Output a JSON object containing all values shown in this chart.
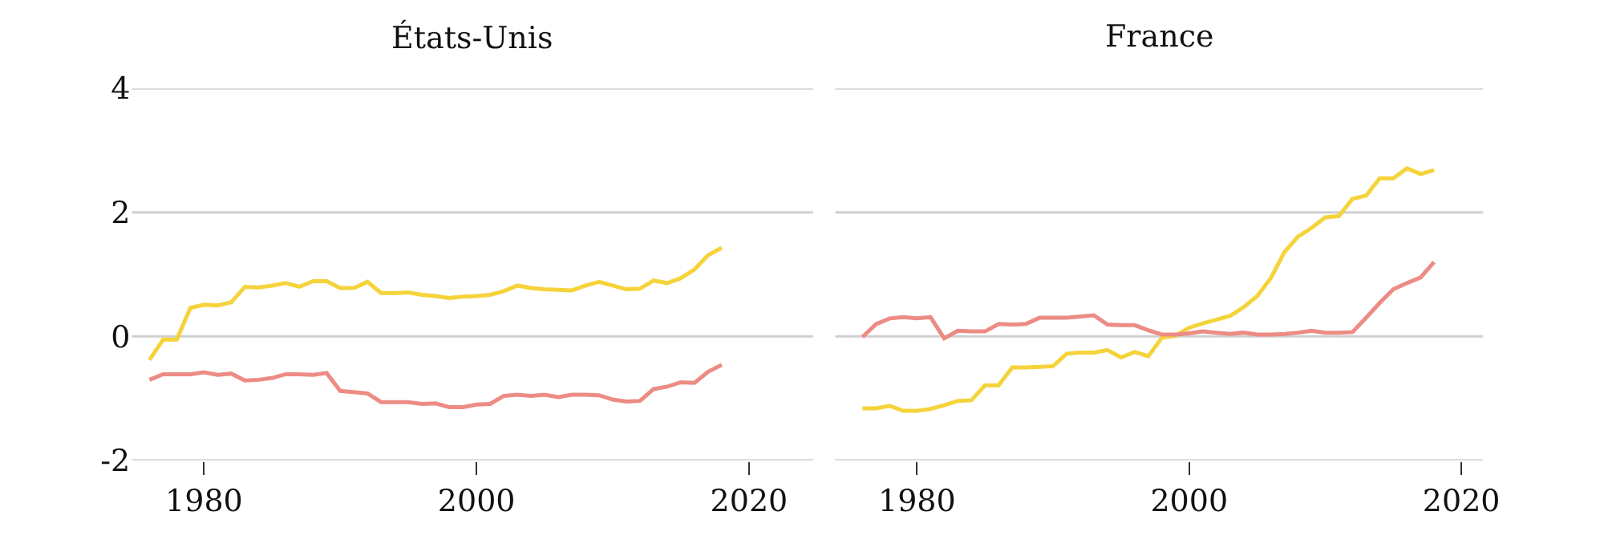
{
  "chart_data": [
    {
      "type": "line",
      "title": "États-Unis",
      "x": [
        1976,
        1977,
        1978,
        1979,
        1980,
        1981,
        1982,
        1983,
        1984,
        1985,
        1986,
        1987,
        1988,
        1989,
        1990,
        1991,
        1992,
        1993,
        1994,
        1995,
        1996,
        1997,
        1998,
        1999,
        2000,
        2001,
        2002,
        2003,
        2004,
        2005,
        2006,
        2007,
        2008,
        2009,
        2010,
        2011,
        2012,
        2013,
        2014,
        2015,
        2016,
        2017,
        2018
      ],
      "series": [
        {
          "color": "#f5d33a",
          "values": [
            -0.38,
            -0.05,
            -0.05,
            0.46,
            0.51,
            0.5,
            0.55,
            0.8,
            0.79,
            0.82,
            0.86,
            0.8,
            0.89,
            0.89,
            0.78,
            0.78,
            0.88,
            0.7,
            0.7,
            0.71,
            0.67,
            0.65,
            0.62,
            0.64,
            0.65,
            0.67,
            0.73,
            0.82,
            0.78,
            0.76,
            0.75,
            0.74,
            0.82,
            0.88,
            0.82,
            0.76,
            0.77,
            0.9,
            0.86,
            0.94,
            1.08,
            1.31,
            1.43
          ]
        },
        {
          "color": "#ec8c84",
          "values": [
            -0.7,
            -0.61,
            -0.61,
            -0.61,
            -0.58,
            -0.62,
            -0.6,
            -0.71,
            -0.7,
            -0.67,
            -0.61,
            -0.61,
            -0.62,
            -0.59,
            -0.88,
            -0.9,
            -0.92,
            -1.06,
            -1.06,
            -1.06,
            -1.09,
            -1.08,
            -1.14,
            -1.14,
            -1.1,
            -1.09,
            -0.96,
            -0.94,
            -0.96,
            -0.94,
            -0.98,
            -0.94,
            -0.94,
            -0.95,
            -1.02,
            -1.05,
            -1.04,
            -0.85,
            -0.81,
            -0.74,
            -0.75,
            -0.57,
            -0.46
          ]
        }
      ],
      "xlim": [
        1974.7,
        2024.7
      ],
      "xticks": [
        1980,
        2000,
        2020
      ],
      "ylim": [
        -2,
        4
      ],
      "yticks": [
        -2,
        0,
        2,
        4
      ],
      "grid": "y",
      "line_style": "solid",
      "marker": "none"
    },
    {
      "type": "line",
      "title": "France",
      "x": [
        1976,
        1977,
        1978,
        1979,
        1980,
        1981,
        1982,
        1983,
        1984,
        1985,
        1986,
        1987,
        1988,
        1989,
        1990,
        1991,
        1992,
        1993,
        1994,
        1995,
        1996,
        1997,
        1998,
        1999,
        2000,
        2001,
        2002,
        2003,
        2004,
        2005,
        2006,
        2007,
        2008,
        2009,
        2010,
        2011,
        2012,
        2013,
        2014,
        2015,
        2016,
        2017,
        2018
      ],
      "series": [
        {
          "color": "#f5d33a",
          "values": [
            -1.16,
            -1.16,
            -1.12,
            -1.2,
            -1.2,
            -1.17,
            -1.11,
            -1.04,
            -1.03,
            -0.79,
            -0.79,
            -0.5,
            -0.5,
            -0.49,
            -0.48,
            -0.28,
            -0.26,
            -0.26,
            -0.22,
            -0.34,
            -0.25,
            -0.32,
            -0.02,
            0.01,
            0.14,
            0.21,
            0.27,
            0.33,
            0.47,
            0.65,
            0.94,
            1.36,
            1.61,
            1.75,
            1.92,
            1.94,
            2.22,
            2.27,
            2.55,
            2.55,
            2.71,
            2.62,
            2.68
          ]
        },
        {
          "color": "#ec8c84",
          "values": [
            -0.01,
            0.2,
            0.29,
            0.31,
            0.29,
            0.31,
            -0.03,
            0.09,
            0.08,
            0.08,
            0.2,
            0.19,
            0.2,
            0.3,
            0.3,
            0.3,
            0.32,
            0.34,
            0.19,
            0.18,
            0.18,
            0.1,
            0.03,
            0.03,
            0.05,
            0.08,
            0.06,
            0.04,
            0.06,
            0.03,
            0.03,
            0.04,
            0.06,
            0.09,
            0.06,
            0.06,
            0.07,
            0.3,
            0.54,
            0.76,
            0.86,
            0.95,
            1.2
          ]
        }
      ],
      "xlim": [
        1974,
        2021.6
      ],
      "xticks": [
        1980,
        2000,
        2020
      ],
      "ylim": [
        -2,
        4
      ],
      "yticks": [
        -2,
        0,
        2,
        4
      ],
      "grid": "y",
      "tick_labels": "x",
      "line_style": "solid",
      "marker": "none"
    }
  ]
}
